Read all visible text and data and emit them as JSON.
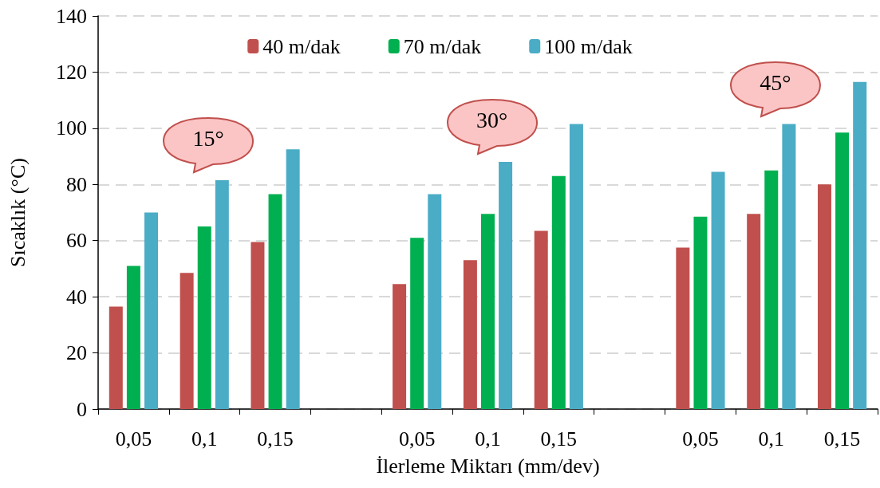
{
  "chart_data": {
    "type": "bar",
    "xlabel": "İlerleme Miktarı (mm/dev)",
    "ylabel": "Sıcaklık (°C)",
    "categories": [
      "0,05",
      "0,1",
      "0,15",
      null,
      "0,05",
      "0,1",
      "0,15",
      null,
      "0,05",
      "0,1",
      "0,15"
    ],
    "series": [
      {
        "name": "40 m/dak",
        "color": "#c0504d",
        "values": [
          36.5,
          48.5,
          59.5,
          null,
          44.5,
          53,
          63.5,
          null,
          57.5,
          69.5,
          80
        ]
      },
      {
        "name": "70 m/dak",
        "color": "#00b050",
        "values": [
          51,
          65,
          76.5,
          null,
          61,
          69.5,
          83,
          null,
          68.5,
          85,
          98.5
        ]
      },
      {
        "name": "100 m/dak",
        "color": "#4bacc6",
        "values": [
          70,
          81.5,
          92.5,
          null,
          76.5,
          88,
          101.5,
          null,
          84.5,
          101.5,
          116.5
        ]
      }
    ],
    "ylim": [
      0,
      140
    ],
    "yticks": [
      0,
      20,
      40,
      60,
      80,
      100,
      120,
      140
    ],
    "grid": "y",
    "legend": "top",
    "annotations": [
      "15°",
      "30°",
      "45°"
    ]
  }
}
